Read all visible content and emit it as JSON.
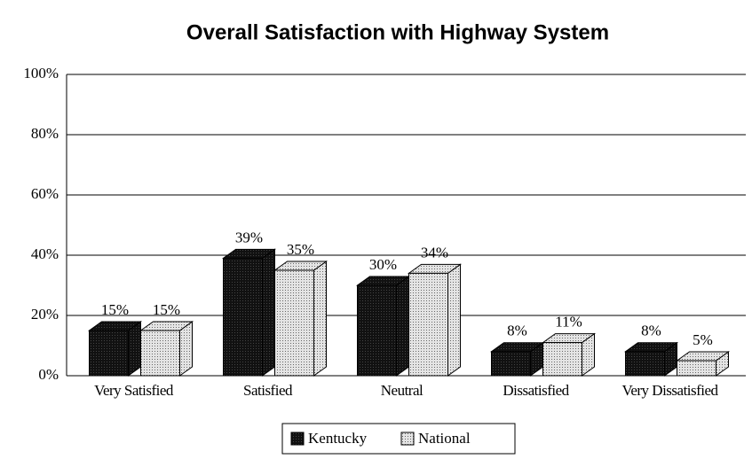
{
  "chart_data": {
    "type": "bar3d",
    "title": "Overall Satisfaction with Highway System",
    "categories": [
      "Very Satisfied",
      "Satisfied",
      "Neutral",
      "Dissatisfied",
      "Very Dissatisfied"
    ],
    "series": [
      {
        "name": "Kentucky",
        "color": "#111111",
        "values": [
          15,
          39,
          30,
          8,
          8
        ],
        "value_labels": [
          "15%",
          "39%",
          "30%",
          "8%",
          "8%"
        ]
      },
      {
        "name": "National",
        "color": "#d8d8d8",
        "values": [
          15,
          35,
          34,
          11,
          5
        ],
        "value_labels": [
          "15%",
          "35%",
          "34%",
          "11%",
          "5%"
        ]
      }
    ],
    "ylim": [
      0,
      100
    ],
    "yticks": [
      {
        "value": 0,
        "label": "0%"
      },
      {
        "value": 20,
        "label": "20%"
      },
      {
        "value": 40,
        "label": "40%"
      },
      {
        "value": 60,
        "label": "60%"
      },
      {
        "value": 80,
        "label": "80%"
      },
      {
        "value": 100,
        "label": "100%"
      }
    ],
    "grid": true,
    "legend": "bottom"
  }
}
